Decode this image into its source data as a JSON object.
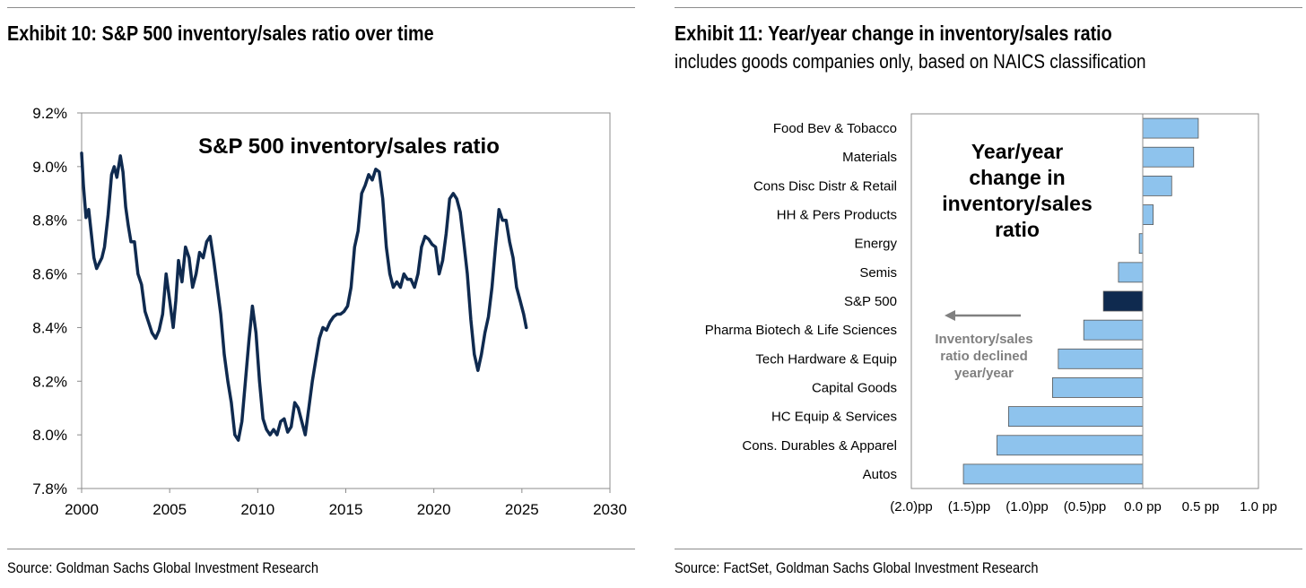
{
  "left": {
    "exhibit_title": "Exhibit 10: S&P 500 inventory/sales ratio over time",
    "source": "Source: Goldman Sachs Global Investment Research"
  },
  "right": {
    "exhibit_title": "Exhibit 11: Year/year change in inventory/sales ratio",
    "exhibit_subtitle": "includes goods companies only, based on NAICS classification",
    "source": "Source: FactSet, Goldman Sachs Global Investment Research"
  },
  "chart_data": [
    {
      "type": "line",
      "title": "S&P 500 inventory/sales ratio",
      "xlabel": "",
      "ylabel": "",
      "xlim": [
        2000,
        2030
      ],
      "ylim": [
        7.8,
        9.2
      ],
      "x_ticks": [
        "2000",
        "2005",
        "2010",
        "2015",
        "2020",
        "2025",
        "2030"
      ],
      "y_ticks": [
        "7.8%",
        "8.0%",
        "8.2%",
        "8.4%",
        "8.6%",
        "8.8%",
        "9.0%",
        "9.2%"
      ],
      "grid": false,
      "line_color": "#0f2a4f",
      "series": [
        {
          "x": [
            2000.0,
            2000.1,
            2000.25,
            2000.4,
            2000.55,
            2000.7,
            2000.85,
            2001.0,
            2001.15,
            2001.3,
            2001.5,
            2001.7,
            2001.85,
            2002.0,
            2002.2,
            2002.35,
            2002.5,
            2002.65,
            2002.8,
            2003.0,
            2003.2,
            2003.4,
            2003.6,
            2003.8,
            2004.0,
            2004.2,
            2004.4,
            2004.6,
            2004.8,
            2005.0,
            2005.2,
            2005.35,
            2005.5,
            2005.7,
            2005.9,
            2006.1,
            2006.3,
            2006.5,
            2006.7,
            2006.9,
            2007.1,
            2007.3,
            2007.5,
            2007.7,
            2007.9,
            2008.1,
            2008.3,
            2008.5,
            2008.7,
            2008.9,
            2009.1,
            2009.3,
            2009.5,
            2009.7,
            2009.9,
            2010.1,
            2010.3,
            2010.5,
            2010.7,
            2010.9,
            2011.1,
            2011.3,
            2011.5,
            2011.7,
            2011.9,
            2012.1,
            2012.3,
            2012.5,
            2012.7,
            2012.9,
            2013.1,
            2013.3,
            2013.5,
            2013.7,
            2013.9,
            2014.1,
            2014.3,
            2014.5,
            2014.7,
            2014.9,
            2015.1,
            2015.3,
            2015.5,
            2015.7,
            2015.9,
            2016.1,
            2016.3,
            2016.5,
            2016.7,
            2016.9,
            2017.1,
            2017.3,
            2017.5,
            2017.7,
            2017.9,
            2018.1,
            2018.3,
            2018.5,
            2018.7,
            2018.9,
            2019.1,
            2019.3,
            2019.5,
            2019.7,
            2019.9,
            2020.1,
            2020.3,
            2020.5,
            2020.7,
            2020.9,
            2021.1,
            2021.3,
            2021.5,
            2021.7,
            2021.9,
            2022.1,
            2022.3,
            2022.5,
            2022.7,
            2022.9,
            2023.1,
            2023.3,
            2023.5,
            2023.7,
            2023.9,
            2024.1,
            2024.3,
            2024.5,
            2024.7,
            2024.9,
            2025.1,
            2025.25
          ],
          "values": [
            9.05,
            8.93,
            8.81,
            8.84,
            8.75,
            8.66,
            8.62,
            8.64,
            8.66,
            8.7,
            8.82,
            8.97,
            9.0,
            8.96,
            9.04,
            8.98,
            8.85,
            8.78,
            8.72,
            8.72,
            8.6,
            8.56,
            8.46,
            8.42,
            8.38,
            8.36,
            8.39,
            8.45,
            8.6,
            8.5,
            8.4,
            8.5,
            8.65,
            8.57,
            8.7,
            8.66,
            8.55,
            8.6,
            8.68,
            8.66,
            8.72,
            8.74,
            8.65,
            8.55,
            8.45,
            8.3,
            8.2,
            8.12,
            8.0,
            7.98,
            8.05,
            8.2,
            8.35,
            8.48,
            8.38,
            8.2,
            8.06,
            8.02,
            8.0,
            8.02,
            8.0,
            8.05,
            8.06,
            8.01,
            8.03,
            8.12,
            8.1,
            8.05,
            8.0,
            8.1,
            8.2,
            8.28,
            8.36,
            8.4,
            8.39,
            8.42,
            8.44,
            8.45,
            8.45,
            8.46,
            8.48,
            8.55,
            8.7,
            8.76,
            8.9,
            8.93,
            8.97,
            8.95,
            8.99,
            8.98,
            8.88,
            8.7,
            8.6,
            8.55,
            8.57,
            8.55,
            8.6,
            8.58,
            8.58,
            8.55,
            8.6,
            8.7,
            8.74,
            8.73,
            8.71,
            8.7,
            8.6,
            8.65,
            8.75,
            8.88,
            8.9,
            8.88,
            8.83,
            8.72,
            8.6,
            8.43,
            8.3,
            8.24,
            8.3,
            8.38,
            8.44,
            8.55,
            8.7,
            8.84,
            8.8,
            8.8,
            8.72,
            8.66,
            8.55,
            8.5,
            8.45,
            8.4
          ]
        }
      ]
    },
    {
      "type": "bar",
      "orientation": "horizontal",
      "title": "Year/year change in inventory/sales ratio",
      "xlabel": "",
      "ylabel": "",
      "xlim": [
        -2.0,
        1.0
      ],
      "x_ticks": [
        "(2.0)pp",
        "(1.5)pp",
        "(1.0)pp",
        "(0.5)pp",
        "0.0 pp",
        "0.5 pp",
        "1.0 pp"
      ],
      "grid": false,
      "categories": [
        "Food Bev & Tobacco",
        "Materials",
        "Cons Disc Distr & Retail",
        "HH & Pers Products",
        "Energy",
        "Semis",
        "S&P 500",
        "Pharma Biotech & Life Sciences",
        "Tech Hardware & Equip",
        "Capital Goods",
        "HC Equip & Services",
        "Cons. Durables & Apparel",
        "Autos"
      ],
      "values": [
        0.48,
        0.44,
        0.25,
        0.09,
        -0.03,
        -0.21,
        -0.34,
        -0.51,
        -0.73,
        -0.78,
        -1.16,
        -1.26,
        -1.55
      ],
      "bar_color": "#8ec3ed",
      "highlight_color": "#0f2a4f",
      "highlight_category": "S&P 500",
      "annotation": {
        "text_lines": [
          "Inventory/sales",
          "ratio declined",
          "year/year"
        ],
        "arrow": "left",
        "color": "#808080"
      }
    }
  ]
}
